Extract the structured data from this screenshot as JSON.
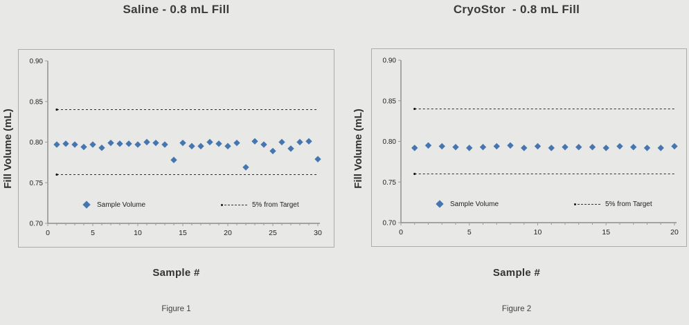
{
  "page": {
    "background": "#e8e8e7"
  },
  "chart_data": [
    {
      "type": "scatter",
      "title": "Saline - 0.8 mL Fill",
      "xlabel": "Sample #",
      "ylabel": "Fill Volume (mL)",
      "caption": "Figure 1",
      "xlim": [
        0,
        30
      ],
      "xticks": [
        0,
        5,
        10,
        15,
        20,
        25,
        30
      ],
      "x_minor_step": 1,
      "ylim": [
        0.7,
        0.9
      ],
      "yticks": [
        0.7,
        0.75,
        0.8,
        0.85,
        0.9
      ],
      "grid": false,
      "legend_position": "bottom-inside",
      "series": [
        {
          "name": "Sample Volume",
          "marker": "diamond",
          "color": "#4676b0",
          "x": [
            1,
            2,
            3,
            4,
            5,
            6,
            7,
            8,
            9,
            10,
            11,
            12,
            13,
            14,
            15,
            16,
            17,
            18,
            19,
            20,
            21,
            22,
            23,
            24,
            25,
            26,
            27,
            28,
            29,
            30
          ],
          "y": [
            0.797,
            0.798,
            0.797,
            0.794,
            0.797,
            0.793,
            0.799,
            0.798,
            0.798,
            0.797,
            0.8,
            0.799,
            0.797,
            0.778,
            0.799,
            0.795,
            0.795,
            0.8,
            0.798,
            0.795,
            0.799,
            0.769,
            0.801,
            0.797,
            0.789,
            0.8,
            0.792,
            0.8,
            0.801,
            0.779
          ]
        }
      ],
      "limits": {
        "name": "5% from Target",
        "values": [
          0.84,
          0.76
        ],
        "color": "#2b2b2b",
        "style": "dashed"
      }
    },
    {
      "type": "scatter",
      "title": "CryoStor  - 0.8 mL Fill",
      "xlabel": "Sample #",
      "ylabel": "Fill Volume (mL)",
      "caption": "Figure 2",
      "xlim": [
        0,
        20
      ],
      "xticks": [
        0,
        5,
        10,
        15,
        20
      ],
      "x_minor_step": 1,
      "ylim": [
        0.7,
        0.9
      ],
      "yticks": [
        0.7,
        0.75,
        0.8,
        0.85,
        0.9
      ],
      "grid": false,
      "legend_position": "bottom-inside",
      "series": [
        {
          "name": "Sample Volume",
          "marker": "diamond",
          "color": "#4676b0",
          "x": [
            1,
            2,
            3,
            4,
            5,
            6,
            7,
            8,
            9,
            10,
            11,
            12,
            13,
            14,
            15,
            16,
            17,
            18,
            19,
            20
          ],
          "y": [
            0.792,
            0.795,
            0.794,
            0.793,
            0.792,
            0.793,
            0.794,
            0.795,
            0.792,
            0.794,
            0.792,
            0.793,
            0.793,
            0.793,
            0.792,
            0.794,
            0.793,
            0.792,
            0.792,
            0.794
          ]
        }
      ],
      "limits": {
        "name": "5% from Target",
        "values": [
          0.84,
          0.76
        ],
        "color": "#2b2b2b",
        "style": "dashed"
      }
    }
  ]
}
